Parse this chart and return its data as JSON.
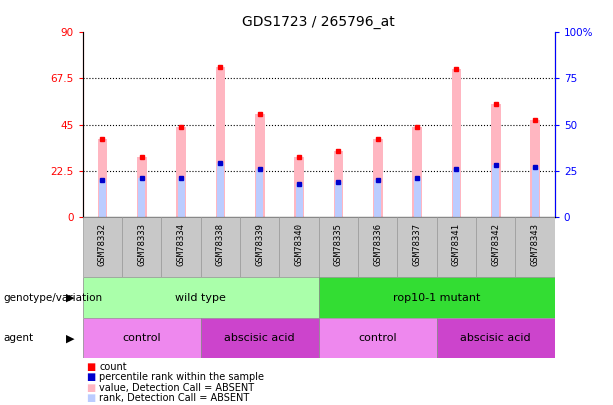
{
  "title": "GDS1723 / 265796_at",
  "samples": [
    "GSM78332",
    "GSM78333",
    "GSM78334",
    "GSM78338",
    "GSM78339",
    "GSM78340",
    "GSM78335",
    "GSM78336",
    "GSM78337",
    "GSM78341",
    "GSM78342",
    "GSM78343"
  ],
  "count_values": [
    38,
    29,
    44,
    73,
    50,
    29,
    32,
    38,
    44,
    72,
    55,
    47
  ],
  "rank_values": [
    20,
    21,
    21,
    29,
    26,
    18,
    19,
    20,
    21,
    26,
    28,
    27
  ],
  "ylim_left": [
    0,
    90
  ],
  "ylim_right": [
    0,
    100
  ],
  "yticks_left": [
    0,
    22.5,
    45,
    67.5,
    90
  ],
  "yticks_right": [
    0,
    25,
    50,
    75,
    100
  ],
  "ytick_labels_left": [
    "0",
    "22.5",
    "45",
    "67.5",
    "90"
  ],
  "ytick_labels_right": [
    "0",
    "25",
    "50",
    "75",
    "100%"
  ],
  "genotype_groups": [
    {
      "label": "wild type",
      "start": 0,
      "end": 6,
      "color": "#AAFFAA"
    },
    {
      "label": "rop10-1 mutant",
      "start": 6,
      "end": 12,
      "color": "#33DD33"
    }
  ],
  "agent_groups": [
    {
      "label": "control",
      "start": 0,
      "end": 3,
      "color": "#EE88EE"
    },
    {
      "label": "abscisic acid",
      "start": 3,
      "end": 6,
      "color": "#CC44CC"
    },
    {
      "label": "control",
      "start": 6,
      "end": 9,
      "color": "#EE88EE"
    },
    {
      "label": "abscisic acid",
      "start": 9,
      "end": 12,
      "color": "#CC44CC"
    }
  ],
  "bar_color_pink": "#FFB6C1",
  "bar_color_lightblue": "#BBCCFF",
  "dot_color_red": "#FF0000",
  "dot_color_blue": "#0000CC",
  "background_label": "#C8C8C8",
  "legend_items": [
    {
      "label": "count",
      "color": "#FF0000"
    },
    {
      "label": "percentile rank within the sample",
      "color": "#0000CC"
    },
    {
      "label": "value, Detection Call = ABSENT",
      "color": "#FFB6C1"
    },
    {
      "label": "rank, Detection Call = ABSENT",
      "color": "#BBCCFF"
    }
  ],
  "bar_width": 0.25,
  "rank_bar_width": 0.18
}
